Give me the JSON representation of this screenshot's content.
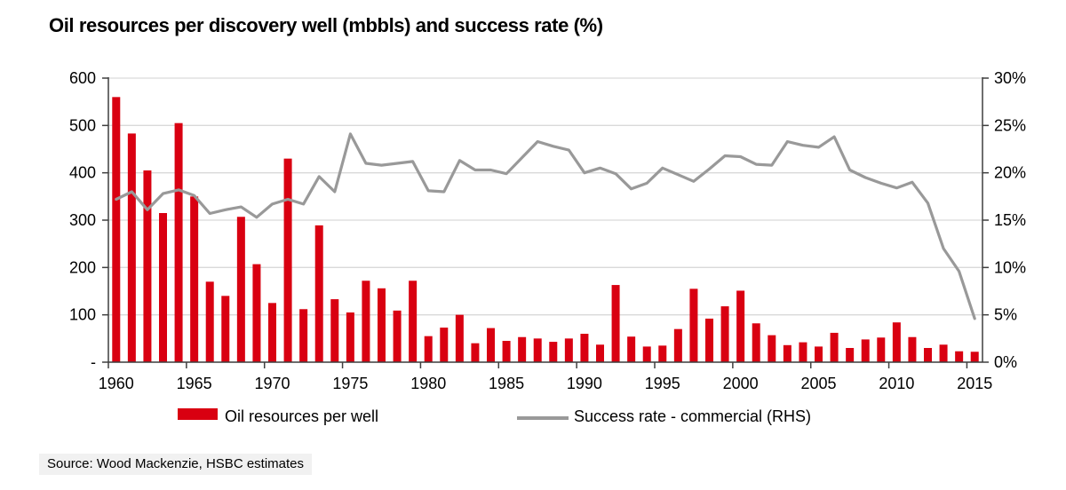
{
  "source_note": "Source: Wood Mackenzie, HSBC estimates",
  "colors": {
    "bar": "#d90011",
    "line": "#999999",
    "grid": "#d9d9d9",
    "axis": "#3f3f3f",
    "text": "#000000",
    "source_bg": "#f1f1f1"
  },
  "chart_data": {
    "type": "bar+line",
    "title": "Oil resources per discovery well (mbbls) and success rate (%)",
    "x": [
      1960,
      1961,
      1962,
      1963,
      1964,
      1965,
      1966,
      1967,
      1968,
      1969,
      1970,
      1971,
      1972,
      1973,
      1974,
      1975,
      1976,
      1977,
      1978,
      1979,
      1980,
      1981,
      1982,
      1983,
      1984,
      1985,
      1986,
      1987,
      1988,
      1989,
      1990,
      1991,
      1992,
      1993,
      1994,
      1995,
      1996,
      1997,
      1998,
      1999,
      2000,
      2001,
      2002,
      2003,
      2004,
      2005,
      2006,
      2007,
      2008,
      2009,
      2010,
      2011,
      2012,
      2013,
      2014,
      2015
    ],
    "series": [
      {
        "name": "Oil resources per well",
        "type": "bar",
        "axis": "left",
        "color": "#d90011",
        "values": [
          560,
          483,
          405,
          315,
          505,
          350,
          170,
          140,
          307,
          207,
          125,
          430,
          112,
          289,
          133,
          105,
          172,
          156,
          109,
          172,
          55,
          73,
          100,
          40,
          72,
          45,
          53,
          50,
          43,
          50,
          60,
          37,
          163,
          54,
          33,
          35,
          70,
          155,
          92,
          118,
          151,
          82,
          57,
          36,
          42,
          33,
          62,
          30,
          48,
          52,
          84,
          53,
          30,
          37,
          23,
          22
        ]
      },
      {
        "name": "Success rate - commercial (RHS)",
        "type": "line",
        "axis": "right",
        "color": "#999999",
        "values": [
          17.2,
          18.0,
          16.1,
          17.8,
          18.2,
          17.6,
          15.7,
          16.1,
          16.4,
          15.3,
          16.7,
          17.2,
          16.7,
          19.6,
          18.0,
          24.1,
          21.0,
          20.8,
          21.0,
          21.2,
          18.1,
          18.0,
          21.3,
          20.3,
          20.3,
          19.9,
          21.6,
          23.3,
          22.8,
          22.4,
          20.0,
          20.5,
          19.9,
          18.3,
          18.9,
          20.5,
          19.8,
          19.1,
          20.4,
          21.8,
          21.7,
          20.9,
          20.8,
          23.3,
          22.9,
          22.7,
          23.8,
          20.3,
          19.5,
          18.9,
          18.4,
          19.0,
          16.8,
          12.0,
          9.6,
          4.6
        ]
      }
    ],
    "left_axis": {
      "range": [
        0,
        600
      ],
      "ticks": [
        {
          "value": 600,
          "label": "600"
        },
        {
          "value": 500,
          "label": "500"
        },
        {
          "value": 400,
          "label": "400"
        },
        {
          "value": 300,
          "label": "300"
        },
        {
          "value": 200,
          "label": "200"
        },
        {
          "value": 100,
          "label": "100"
        },
        {
          "value": 0,
          "label": "-"
        }
      ]
    },
    "right_axis": {
      "range": [
        0,
        30
      ],
      "ticks": [
        {
          "value": 30,
          "label": "30%"
        },
        {
          "value": 25,
          "label": "25%"
        },
        {
          "value": 20,
          "label": "20%"
        },
        {
          "value": 15,
          "label": "15%"
        },
        {
          "value": 10,
          "label": "10%"
        },
        {
          "value": 5,
          "label": "5%"
        },
        {
          "value": 0,
          "label": "0%"
        }
      ]
    },
    "x_ticks": [
      1960,
      1965,
      1970,
      1975,
      1980,
      1985,
      1990,
      1995,
      2000,
      2005,
      2010,
      2015
    ],
    "grid": true,
    "legend_position": "bottom"
  }
}
